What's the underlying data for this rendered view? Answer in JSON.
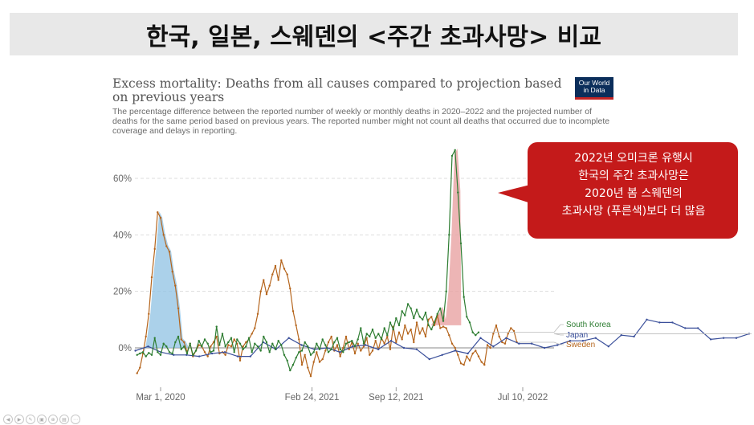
{
  "banner": {
    "title": "한국, 일본, 스웨덴의 <주간 초과사망> 비교"
  },
  "header": {
    "title": "Excess mortality: Deaths from all causes compared to projection based on previous years",
    "subtitle": "The percentage difference between the reported number of weekly or monthly deaths in 2020–2022 and the projected number of deaths for the same period based on previous years. The reported number might not count all deaths that occurred due to incomplete coverage and delays in reporting.",
    "logo_lines": [
      "Our World",
      "in Data"
    ]
  },
  "callout": {
    "lines": [
      "2022년 오미크론 유행시",
      "한국의 주간 초과사망은",
      "2020년 봄 스웨덴의",
      "초과사망 (푸른색)보다 더 많음"
    ],
    "color": "#c41a1a"
  },
  "colors": {
    "south_korea": "#2e7d32",
    "japan": "#3a4f9a",
    "sweden": "#b5651d",
    "sweden_highlight": "#8fc1e3",
    "korea_highlight": "#e8a3a3"
  },
  "chart_data": {
    "type": "line",
    "title": "",
    "xlabel": "",
    "ylabel": "",
    "x_ticks": [
      "Mar 1, 2020",
      "Feb 24, 2021",
      "Sep 12, 2021",
      "Jul 10, 2022"
    ],
    "y_ticks": [
      "0%",
      "20%",
      "40%",
      "60%"
    ],
    "ylim": [
      -12,
      72
    ],
    "x_range": [
      "2020-01-05",
      "2022-07-31"
    ],
    "grid": true,
    "legend_position": "right",
    "series": [
      {
        "name": "South Korea",
        "values": [
          -2.5,
          -2,
          -1.5,
          -3,
          -1.8,
          -2.5,
          3.5,
          -1.5,
          -2.5,
          1.5,
          0.5,
          -1.5,
          -2,
          2,
          4,
          -0.5,
          0.5,
          -2,
          1.5,
          -2.5,
          -1,
          2.5,
          0.5,
          3,
          1.5,
          -1.5,
          -1,
          7.5,
          1,
          5,
          0.5,
          2,
          3.5,
          -1.5,
          3,
          1.5,
          -0.5,
          0.5,
          3.5,
          -1.5,
          1.5,
          0.5,
          -1,
          4,
          2,
          -1.5,
          1.5,
          -0.5,
          2.5,
          1,
          -2.5,
          -4.5,
          -8,
          -6,
          -3.5,
          -1.5,
          -1,
          2,
          0.5,
          -2.5,
          -1.5,
          1.5,
          -0.5,
          3,
          1,
          -1.5,
          -0.5,
          2,
          3.5,
          -0.5,
          -1.5,
          1.5,
          2,
          2.5,
          0.5,
          3,
          7,
          1.5,
          5,
          4,
          6.5,
          3.5,
          5,
          3,
          7,
          4.5,
          9,
          6.5,
          10.5,
          8,
          13,
          11.5,
          15.5,
          14,
          10.5,
          13.5,
          11,
          10,
          12.5,
          8,
          6.5,
          9,
          12,
          14,
          9.5,
          20,
          40,
          68,
          70,
          55,
          37,
          18,
          11,
          9,
          5.5,
          4.5,
          5.5
        ],
        "x_start": "2020-01-05",
        "interval_days": 7
      },
      {
        "name": "Japan",
        "values": [
          -1,
          0.5,
          -1.5,
          -2.5,
          -2.5,
          -3,
          -2,
          -1.5,
          -3,
          -3,
          2,
          -0.5,
          3.5,
          1,
          -0.5,
          0,
          -1.5,
          0.5,
          1,
          -0.5,
          2.5,
          0,
          -0.5,
          -4,
          -2.5,
          -1,
          -2,
          3.5,
          0.5,
          3.5,
          1.5,
          1.5,
          0,
          1,
          2.5,
          2.5,
          3.5,
          0.5,
          4.5,
          4,
          10,
          9,
          9,
          7,
          7,
          3,
          3.5,
          3.5,
          5
        ],
        "x_start": "2020-01-01",
        "interval_days": 30.4
      },
      {
        "name": "Sweden",
        "values": [
          -9,
          -7,
          -2,
          4,
          12,
          25,
          35,
          48,
          46,
          40,
          36,
          34,
          27,
          22,
          14,
          3,
          2,
          -1.5,
          1.5,
          -3,
          -1,
          1,
          0.5,
          -1.5,
          -3,
          0.5,
          2,
          4,
          -2,
          -1.5,
          -2.5,
          1,
          0.5,
          3,
          1.5,
          -4.5,
          0.5,
          2,
          3,
          5,
          7,
          12,
          20,
          24,
          19,
          22,
          26,
          29,
          24,
          31,
          28,
          26,
          21,
          13,
          8,
          3,
          -6,
          -2.5,
          -7,
          -10,
          -5,
          -1.5,
          -5,
          -4,
          -1,
          2,
          4,
          -1,
          1,
          -3,
          0,
          4,
          -0.5,
          2,
          -2,
          1.5,
          -1,
          0.5,
          3.5,
          -2.5,
          -1,
          2.5,
          -0.5,
          3.5,
          1.5,
          4,
          -0.5,
          7.5,
          2,
          5.5,
          3,
          8,
          5,
          6.5,
          2,
          9,
          5,
          7,
          4,
          10,
          11,
          8,
          11.5,
          7,
          7.5,
          7,
          4.5,
          1.5,
          0,
          -2.5,
          -5.5,
          -6,
          -3,
          -4.5,
          -2,
          -1,
          -3,
          -5,
          -6,
          1,
          0,
          5,
          8,
          4,
          2,
          1.5,
          5,
          7,
          6,
          2
        ],
        "x_start": "2020-01-05",
        "interval_days": 7
      }
    ]
  }
}
